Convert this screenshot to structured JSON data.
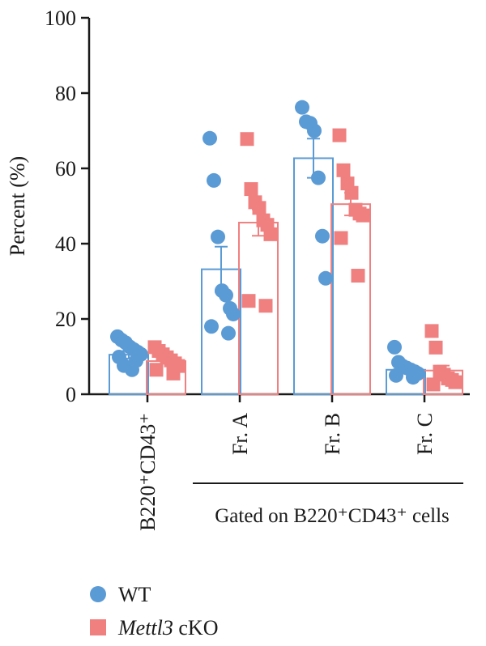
{
  "chart_data": {
    "type": "bar",
    "ylabel": "Percent (%)",
    "ylim": [
      0,
      100
    ],
    "yticks": [
      0,
      20,
      40,
      60,
      80,
      100
    ],
    "categories": [
      "B220⁺CD43⁺",
      "Fr. A",
      "Fr. B",
      "Fr. C"
    ],
    "group_bracket_label": "Gated on B220⁺CD43⁺ cells",
    "bracket_categories": [
      "Fr. A",
      "Fr. B",
      "Fr. C"
    ],
    "grid": false,
    "legend_position": "bottom-left",
    "series": [
      {
        "name": "WT",
        "name_parts": [
          {
            "text": "WT",
            "italic": false
          }
        ],
        "color": "#5b9bd5",
        "marker": "circle",
        "values": [
          10.5,
          33.2,
          62.7,
          6.5
        ],
        "error": [
          1.0,
          6.0,
          5.2,
          0.8
        ],
        "points": [
          [
            15.3,
            14.4,
            13.7,
            12.6,
            11.9,
            11.2,
            10.6,
            9.9,
            8.9,
            7.6,
            6.5
          ],
          [
            68.0,
            56.8,
            41.8,
            27.5,
            26.3,
            22.8,
            21.3,
            18.0,
            16.2
          ],
          [
            76.2,
            72.4,
            72.0,
            70.0,
            57.5,
            42.0,
            30.8
          ],
          [
            12.5,
            8.5,
            7.5,
            7.0,
            6.5,
            6.0,
            5.5,
            5.0,
            4.5
          ]
        ]
      },
      {
        "name": "Mettl3 cKO",
        "name_parts": [
          {
            "text": "Mettl3",
            "italic": true
          },
          {
            "text": " cKO",
            "italic": false
          }
        ],
        "color": "#f08080",
        "marker": "square",
        "values": [
          8.8,
          45.6,
          50.5,
          6.3
        ],
        "error": [
          0.7,
          3.5,
          3.0,
          1.3
        ],
        "points": [
          [
            12.5,
            11.5,
            10.6,
            9.8,
            9.0,
            8.2,
            7.5,
            6.5,
            5.5
          ],
          [
            67.8,
            54.5,
            51.0,
            49.5,
            46.2,
            45.0,
            42.5,
            24.8,
            23.5
          ],
          [
            68.8,
            59.5,
            56.0,
            53.5,
            49.0,
            48.0,
            47.5,
            41.5,
            31.5
          ],
          [
            16.8,
            12.4,
            6.0,
            5.2,
            4.2,
            3.8,
            3.2,
            2.6
          ]
        ]
      }
    ]
  }
}
